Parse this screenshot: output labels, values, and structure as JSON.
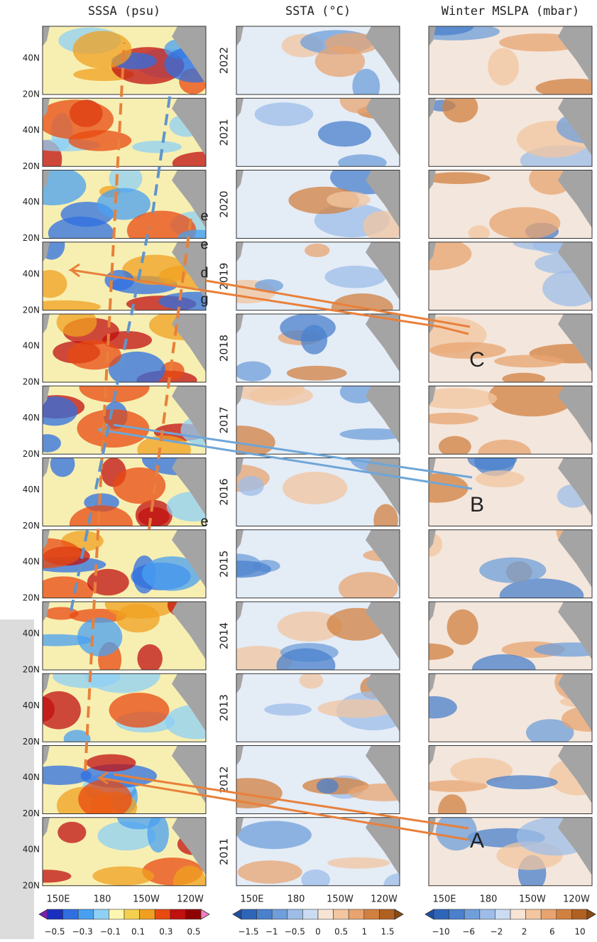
{
  "columns": [
    {
      "title": "SSSA (psu)",
      "lon_labels": [
        "150E",
        "180",
        "150W",
        "120W"
      ],
      "colorbar": {
        "colors": [
          "#7a1fb0",
          "#1a2fc0",
          "#2f6fe0",
          "#4aa0f0",
          "#8fd0f5",
          "#fdf6b0",
          "#f5d050",
          "#f0a020",
          "#e84a10",
          "#c01010",
          "#900000",
          "#f080c0"
        ],
        "labels": [
          "−0.5",
          "−0.3",
          "−0.1",
          "0.1",
          "0.3",
          "0.5"
        ]
      }
    },
    {
      "title": "SSTA (°C)",
      "lon_labels": [
        "150E",
        "180",
        "150W",
        "120W"
      ],
      "colorbar": {
        "colors": [
          "#1f4fa0",
          "#2f65b8",
          "#4a80cc",
          "#6f9fda",
          "#9dbde8",
          "#cbdcf2",
          "#f8e4d4",
          "#f2c6a0",
          "#e8a470",
          "#d28040",
          "#b06020",
          "#8a4a10"
        ],
        "labels": [
          "−1.5",
          "−1",
          "−0.5",
          "0",
          "0.5",
          "1",
          "1.5"
        ]
      }
    },
    {
      "title": "Winter MSLPA (mbar)",
      "lon_labels": [
        "150E",
        "180",
        "150W",
        "120W"
      ],
      "colorbar": {
        "colors": [
          "#1f4fa0",
          "#2f65b8",
          "#4a80cc",
          "#6f9fda",
          "#9dbde8",
          "#cbdcf2",
          "#f8e4d4",
          "#f2c6a0",
          "#e8a470",
          "#d28040",
          "#b06020",
          "#8a4a10"
        ],
        "labels": [
          "−10",
          "−6",
          "−2",
          "2",
          "6",
          "10"
        ]
      }
    }
  ],
  "years": [
    "2022",
    "2021",
    "2020",
    "2019",
    "2018",
    "2017",
    "2016",
    "2015",
    "2014",
    "2013",
    "2012",
    "2011"
  ],
  "lat_labels": [
    "40N",
    "20N"
  ],
  "annotations": [
    "C",
    "B",
    "A"
  ],
  "cropped_text": [
    "e",
    "e",
    "d",
    "g",
    "e"
  ]
}
